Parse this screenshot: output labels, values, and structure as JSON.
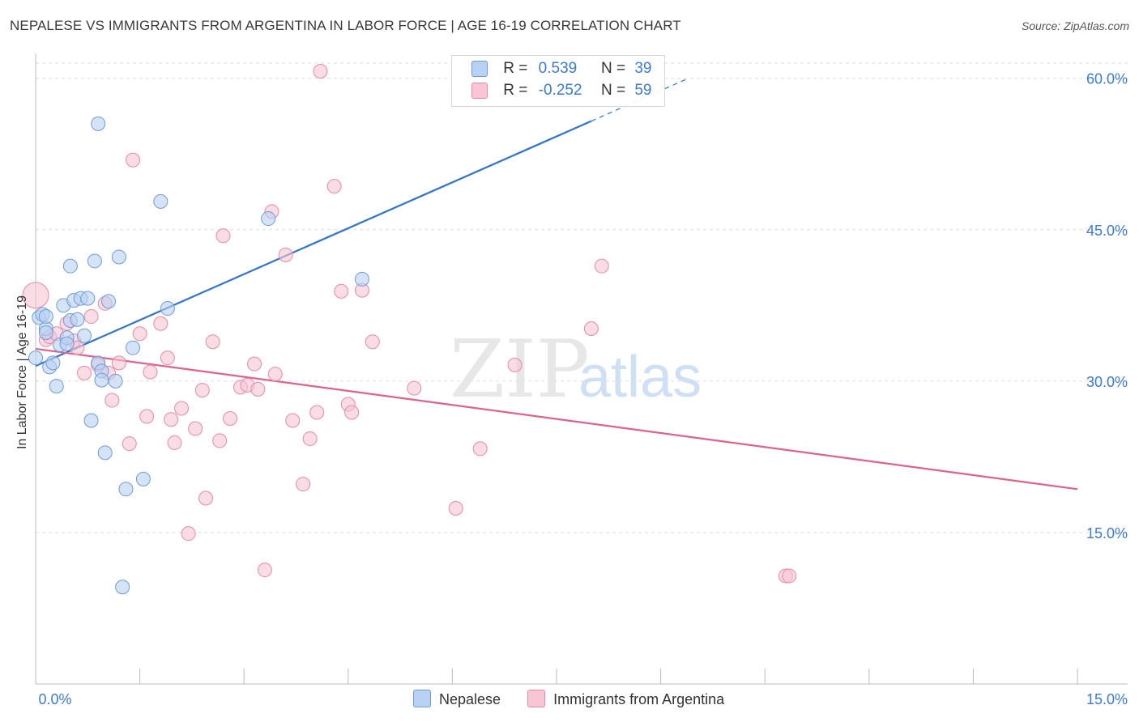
{
  "header": {
    "title": "NEPALESE VS IMMIGRANTS FROM ARGENTINA IN LABOR FORCE | AGE 16-19 CORRELATION CHART",
    "source": "Source: ZipAtlas.com"
  },
  "watermark": {
    "zip": "ZIP",
    "atlas": "atlas"
  },
  "legend": {
    "rows": [
      {
        "r_label": "R =",
        "r_value": "0.539",
        "n_label": "N =",
        "n_value": "39"
      },
      {
        "r_label": "R =",
        "r_value": "-0.252",
        "n_label": "N =",
        "n_value": "59"
      }
    ]
  },
  "bottom_legend": {
    "items": [
      "Nepalese",
      "Immigrants from Argentina"
    ]
  },
  "colors": {
    "blue_fill": "#b9d1f2",
    "blue_stroke": "#6f9bd8",
    "blue_line": "#2f74d0",
    "pink_fill": "#f7c5d3",
    "pink_stroke": "#e88aa8",
    "pink_line": "#e0628c",
    "axis_tick_text": "#3d7ad6",
    "grid": "#dedede"
  },
  "chart_data": {
    "type": "scatter",
    "title": "NEPALESE VS IMMIGRANTS FROM ARGENTINA IN LABOR FORCE | AGE 16-19 CORRELATION CHART",
    "xlabel": "",
    "ylabel": "In Labor Force | Age 16-19",
    "xlim": [
      0,
      15
    ],
    "ylim": [
      0,
      60
    ],
    "x_tick_labels": [
      "0.0%",
      "15.0%"
    ],
    "y_tick_labels": [
      "15.0%",
      "30.0%",
      "45.0%",
      "60.0%"
    ],
    "y_ticks": [
      15,
      30,
      45,
      60
    ],
    "grid": true,
    "legend_position": "top-center",
    "series": [
      {
        "name": "Nepalese",
        "color": "blue",
        "r": 0.539,
        "n": 39,
        "trend": {
          "x": [
            0,
            9.4
          ],
          "y": [
            31.5,
            60.0
          ],
          "solid_until_x": 8.0
        },
        "points": [
          [
            0.0,
            32.3
          ],
          [
            0.05,
            36.3
          ],
          [
            0.1,
            36.6
          ],
          [
            0.15,
            35.2
          ],
          [
            0.15,
            36.4
          ],
          [
            0.2,
            31.4
          ],
          [
            0.25,
            31.8
          ],
          [
            0.3,
            29.5
          ],
          [
            0.35,
            33.6
          ],
          [
            0.4,
            37.5
          ],
          [
            0.45,
            34.3
          ],
          [
            0.45,
            33.7
          ],
          [
            0.5,
            36.0
          ],
          [
            0.5,
            41.4
          ],
          [
            0.55,
            38.0
          ],
          [
            0.6,
            36.1
          ],
          [
            0.65,
            38.2
          ],
          [
            0.7,
            34.5
          ],
          [
            0.75,
            38.2
          ],
          [
            0.8,
            26.1
          ],
          [
            0.85,
            41.9
          ],
          [
            0.9,
            31.8
          ],
          [
            0.9,
            55.5
          ],
          [
            0.95,
            31.0
          ],
          [
            1.0,
            22.9
          ],
          [
            1.05,
            37.9
          ],
          [
            0.95,
            30.1
          ],
          [
            1.15,
            30.0
          ],
          [
            1.2,
            42.3
          ],
          [
            1.25,
            9.6
          ],
          [
            1.3,
            19.3
          ],
          [
            1.4,
            33.3
          ],
          [
            1.55,
            20.3
          ],
          [
            1.8,
            47.8
          ],
          [
            1.9,
            37.2
          ],
          [
            3.35,
            46.1
          ],
          [
            4.7,
            40.1
          ],
          [
            7.4,
            59.1
          ],
          [
            0.15,
            34.8
          ]
        ]
      },
      {
        "name": "Immigrants from Argentina",
        "color": "pink",
        "r": -0.252,
        "n": 59,
        "trend": {
          "x": [
            0,
            15
          ],
          "y": [
            33.2,
            19.3
          ]
        },
        "points": [
          [
            0.0,
            38.5
          ],
          [
            0.15,
            34.1
          ],
          [
            0.2,
            34.4
          ],
          [
            0.3,
            34.7
          ],
          [
            0.45,
            35.7
          ],
          [
            0.55,
            34.0
          ],
          [
            0.6,
            33.3
          ],
          [
            0.7,
            30.8
          ],
          [
            0.8,
            36.4
          ],
          [
            0.9,
            31.6
          ],
          [
            1.0,
            37.7
          ],
          [
            1.1,
            28.1
          ],
          [
            1.2,
            31.8
          ],
          [
            1.35,
            23.8
          ],
          [
            1.4,
            51.9
          ],
          [
            1.5,
            34.7
          ],
          [
            1.6,
            26.5
          ],
          [
            1.65,
            30.9
          ],
          [
            1.8,
            35.7
          ],
          [
            1.9,
            32.3
          ],
          [
            1.95,
            26.2
          ],
          [
            2.0,
            23.9
          ],
          [
            2.1,
            27.3
          ],
          [
            2.2,
            14.9
          ],
          [
            2.3,
            25.3
          ],
          [
            2.4,
            29.1
          ],
          [
            2.45,
            18.4
          ],
          [
            2.55,
            33.9
          ],
          [
            2.65,
            24.1
          ],
          [
            2.7,
            44.4
          ],
          [
            2.8,
            26.3
          ],
          [
            2.95,
            29.4
          ],
          [
            3.05,
            29.6
          ],
          [
            3.15,
            31.7
          ],
          [
            3.2,
            29.2
          ],
          [
            3.3,
            11.3
          ],
          [
            3.4,
            46.8
          ],
          [
            3.45,
            30.7
          ],
          [
            3.6,
            42.5
          ],
          [
            3.7,
            26.1
          ],
          [
            3.85,
            19.8
          ],
          [
            3.95,
            24.3
          ],
          [
            4.05,
            26.9
          ],
          [
            4.3,
            49.3
          ],
          [
            4.4,
            38.9
          ],
          [
            4.5,
            27.7
          ],
          [
            4.55,
            26.9
          ],
          [
            4.7,
            39.0
          ],
          [
            4.85,
            33.9
          ],
          [
            5.45,
            29.3
          ],
          [
            6.05,
            17.4
          ],
          [
            6.4,
            23.3
          ],
          [
            6.9,
            31.6
          ],
          [
            8.0,
            35.2
          ],
          [
            8.15,
            41.4
          ],
          [
            10.8,
            10.7
          ],
          [
            10.85,
            10.7
          ],
          [
            4.1,
            60.7
          ],
          [
            1.05,
            30.8
          ]
        ]
      }
    ]
  }
}
